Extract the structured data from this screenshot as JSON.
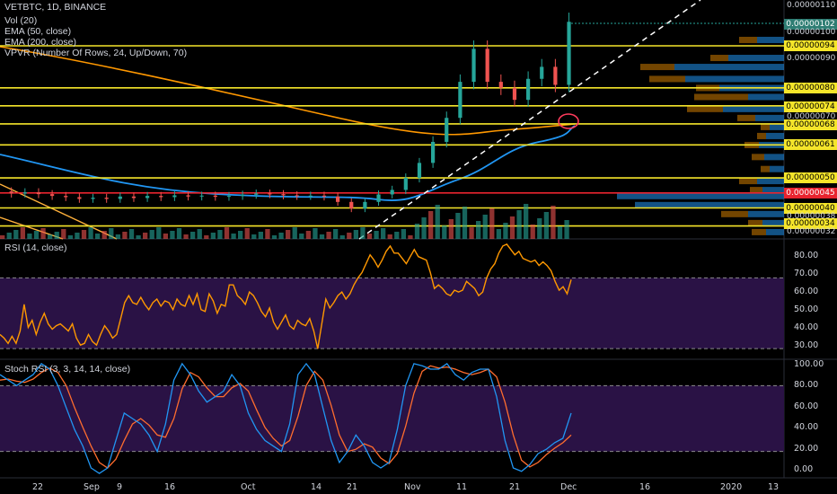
{
  "chart_data": [
    {
      "type": "candlestick",
      "title": "VETBTC, 1D, BINANCE",
      "indicators": [
        "Vol (20)",
        "EMA (50, close)",
        "EMA (200, close)",
        "VPVR (Number Of Rows, 24, Up/Down, 70)"
      ],
      "x_ticks": [
        "22",
        "Sep",
        "9",
        "16",
        "Oct",
        "14",
        "21",
        "Nov",
        "11",
        "21",
        "Dec",
        "16",
        "2020",
        "13"
      ],
      "price_axis_ticks": [
        "0.00000110",
        "0.00000100",
        "0.00000090",
        "0.00000070",
        "0.00000060",
        "0.00000050",
        "0.00000040",
        "0.00000038",
        "0.00000034",
        "0.00000032"
      ],
      "current_price": "0.00000102",
      "horizontal_levels": [
        {
          "price": 9.4e-07,
          "label": "0.00000094",
          "color": "#f5e52a"
        },
        {
          "price": 8e-07,
          "label": "0.00000080",
          "color": "#f5e52a"
        },
        {
          "price": 7.4e-07,
          "label": "0.00000074",
          "color": "#f5e52a"
        },
        {
          "price": 6.8e-07,
          "label": "0.00000068",
          "color": "#f5e52a"
        },
        {
          "price": 6.1e-07,
          "label": "0.00000061",
          "color": "#f5e52a"
        },
        {
          "price": 5e-07,
          "label": "0.00000050",
          "color": "#f5e52a"
        },
        {
          "price": 4.5e-07,
          "label": "0.00000045",
          "color": "#e8242f"
        },
        {
          "price": 4e-07,
          "label": "0.00000040",
          "color": "#f5e52a"
        },
        {
          "price": 3.4e-07,
          "label": "0.00000034",
          "color": "#f5e52a"
        }
      ],
      "closes_approx": [
        4.55e-07,
        4.48e-07,
        4.52e-07,
        4.46e-07,
        4.4e-07,
        4.36e-07,
        4.3e-07,
        4.34e-07,
        4.3e-07,
        4.38e-07,
        4.33e-07,
        4.4e-07,
        4.36e-07,
        4.42e-07,
        4.38e-07,
        4.41e-07,
        4.37e-07,
        4.4e-07,
        4.44e-07,
        4.48e-07,
        4.46e-07,
        4.42e-07,
        4.4e-07,
        4.41e-07,
        4.38e-07,
        4.2e-07,
        3.98e-07,
        4.2e-07,
        4.45e-07,
        4.6e-07,
        5e-07,
        5.5e-07,
        6.2e-07,
        7e-07,
        8.2e-07,
        9.3e-07,
        8.2e-07,
        8e-07,
        7.6e-07,
        8.3e-07,
        8.7e-07,
        8.1e-07,
        1.02e-06
      ],
      "colors": {
        "up": "#26a69a",
        "down": "#ef5350",
        "ema50": "#2196f3",
        "ema200": "#ff9800",
        "trend": "#ffffff"
      }
    },
    {
      "type": "line",
      "title": "RSI (14, close)",
      "y_ticks": [
        "80.00",
        "70.00",
        "60.00",
        "50.00",
        "40.00",
        "30.00"
      ],
      "ylim": [
        24,
        92
      ],
      "bands": [
        70,
        30
      ],
      "series": [
        {
          "values": [
            38,
            36,
            33,
            37,
            33,
            40,
            55,
            42,
            46,
            38,
            45,
            50,
            44,
            41,
            43,
            44,
            42,
            40,
            44,
            36,
            32,
            33,
            38,
            34,
            32,
            38,
            43,
            40,
            36,
            38,
            47,
            56,
            60,
            56,
            55,
            59,
            55,
            52,
            56,
            58,
            54,
            57,
            56,
            52,
            58,
            55,
            54,
            60,
            55,
            61,
            52,
            51,
            61,
            57,
            50,
            55,
            54,
            66,
            66,
            60,
            58,
            55,
            62,
            60,
            56,
            51,
            48,
            53,
            45,
            41,
            45,
            49,
            43,
            41,
            46,
            44,
            43,
            47,
            40,
            30,
            44,
            58,
            53,
            56,
            60,
            62,
            58,
            61,
            66,
            70,
            73,
            78,
            83,
            80,
            76,
            80,
            85,
            88,
            84,
            84,
            81,
            78,
            82,
            86,
            82,
            81,
            80,
            73,
            64,
            66,
            64,
            61,
            60,
            63,
            62,
            63,
            68,
            66,
            64,
            60,
            62,
            70,
            75,
            78,
            84,
            88,
            89,
            86,
            83,
            85,
            81,
            80,
            79,
            80,
            77,
            79,
            77,
            74,
            68,
            63,
            65,
            61,
            69
          ]
        }
      ]
    },
    {
      "type": "line",
      "title": "Stoch RSI (3, 3, 14, 14, close)",
      "y_ticks": [
        "100.00",
        "80.00",
        "60.00",
        "40.00",
        "20.00",
        "0.00"
      ],
      "ylim": [
        -4,
        104
      ],
      "bands": [
        80,
        20
      ],
      "series": [
        {
          "name": "K",
          "values": [
            90,
            85,
            80,
            85,
            90,
            100,
            95,
            80,
            60,
            40,
            25,
            5,
            0,
            5,
            30,
            55,
            50,
            45,
            35,
            20,
            45,
            85,
            100,
            90,
            75,
            65,
            70,
            75,
            90,
            80,
            55,
            40,
            30,
            25,
            20,
            45,
            90,
            100,
            90,
            60,
            30,
            10,
            20,
            35,
            25,
            10,
            5,
            10,
            40,
            80,
            100,
            98,
            95,
            95,
            100,
            90,
            85,
            92,
            95,
            95,
            70,
            30,
            5,
            2,
            8,
            18,
            22,
            28,
            32,
            55
          ]
        },
        {
          "name": "D",
          "values": [
            85,
            86,
            84,
            83,
            86,
            92,
            96,
            92,
            80,
            60,
            42,
            25,
            10,
            5,
            13,
            30,
            45,
            50,
            44,
            35,
            33,
            50,
            77,
            92,
            88,
            78,
            70,
            70,
            78,
            82,
            75,
            58,
            42,
            32,
            25,
            30,
            52,
            80,
            93,
            85,
            62,
            35,
            20,
            22,
            27,
            24,
            14,
            9,
            18,
            43,
            73,
            93,
            98,
            96,
            97,
            95,
            92,
            90,
            92,
            95,
            88,
            65,
            35,
            12,
            6,
            10,
            17,
            23,
            28,
            35
          ]
        }
      ]
    }
  ],
  "icons": {
    "vpvr": "volume-profile-bars",
    "highlight": "red-circle-marker"
  }
}
